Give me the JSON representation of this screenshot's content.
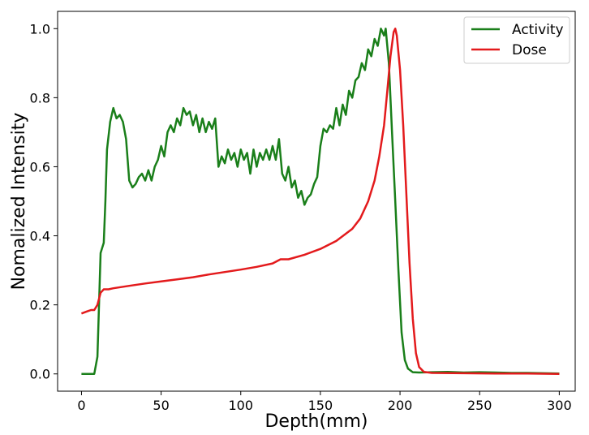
{
  "chart_data": {
    "type": "line",
    "xlabel": "Depth(mm)",
    "ylabel": "Nomalized Intensity",
    "xlim": [
      -15,
      310
    ],
    "ylim": [
      -0.05,
      1.05
    ],
    "xticks": [
      0,
      50,
      100,
      150,
      200,
      250,
      300
    ],
    "yticks": [
      0.0,
      0.2,
      0.4,
      0.6,
      0.8,
      1.0
    ],
    "grid": false,
    "legend_position": "top-right",
    "series": [
      {
        "name": "Activity",
        "color": "#1a7f1a",
        "points": [
          [
            0,
            0.0
          ],
          [
            8,
            0.0
          ],
          [
            10,
            0.05
          ],
          [
            12,
            0.35
          ],
          [
            14,
            0.38
          ],
          [
            15,
            0.5
          ],
          [
            16,
            0.65
          ],
          [
            18,
            0.73
          ],
          [
            20,
            0.77
          ],
          [
            22,
            0.74
          ],
          [
            24,
            0.75
          ],
          [
            26,
            0.73
          ],
          [
            28,
            0.68
          ],
          [
            30,
            0.56
          ],
          [
            32,
            0.54
          ],
          [
            34,
            0.55
          ],
          [
            36,
            0.57
          ],
          [
            38,
            0.58
          ],
          [
            40,
            0.56
          ],
          [
            42,
            0.59
          ],
          [
            44,
            0.56
          ],
          [
            46,
            0.6
          ],
          [
            48,
            0.62
          ],
          [
            50,
            0.66
          ],
          [
            52,
            0.63
          ],
          [
            54,
            0.7
          ],
          [
            56,
            0.72
          ],
          [
            58,
            0.7
          ],
          [
            60,
            0.74
          ],
          [
            62,
            0.72
          ],
          [
            64,
            0.77
          ],
          [
            66,
            0.75
          ],
          [
            68,
            0.76
          ],
          [
            70,
            0.72
          ],
          [
            72,
            0.75
          ],
          [
            74,
            0.7
          ],
          [
            76,
            0.74
          ],
          [
            78,
            0.7
          ],
          [
            80,
            0.73
          ],
          [
            82,
            0.71
          ],
          [
            84,
            0.74
          ],
          [
            86,
            0.6
          ],
          [
            88,
            0.63
          ],
          [
            90,
            0.61
          ],
          [
            92,
            0.65
          ],
          [
            94,
            0.62
          ],
          [
            96,
            0.64
          ],
          [
            98,
            0.6
          ],
          [
            100,
            0.65
          ],
          [
            102,
            0.62
          ],
          [
            104,
            0.64
          ],
          [
            106,
            0.58
          ],
          [
            108,
            0.65
          ],
          [
            110,
            0.6
          ],
          [
            112,
            0.64
          ],
          [
            114,
            0.62
          ],
          [
            116,
            0.65
          ],
          [
            118,
            0.62
          ],
          [
            120,
            0.66
          ],
          [
            122,
            0.62
          ],
          [
            124,
            0.68
          ],
          [
            126,
            0.58
          ],
          [
            128,
            0.56
          ],
          [
            130,
            0.6
          ],
          [
            132,
            0.54
          ],
          [
            134,
            0.56
          ],
          [
            136,
            0.51
          ],
          [
            138,
            0.53
          ],
          [
            140,
            0.49
          ],
          [
            142,
            0.51
          ],
          [
            144,
            0.52
          ],
          [
            146,
            0.55
          ],
          [
            148,
            0.57
          ],
          [
            150,
            0.66
          ],
          [
            152,
            0.71
          ],
          [
            154,
            0.7
          ],
          [
            156,
            0.72
          ],
          [
            158,
            0.71
          ],
          [
            160,
            0.77
          ],
          [
            162,
            0.72
          ],
          [
            164,
            0.78
          ],
          [
            166,
            0.75
          ],
          [
            168,
            0.82
          ],
          [
            170,
            0.8
          ],
          [
            172,
            0.85
          ],
          [
            174,
            0.86
          ],
          [
            176,
            0.9
          ],
          [
            178,
            0.88
          ],
          [
            180,
            0.94
          ],
          [
            182,
            0.92
          ],
          [
            184,
            0.97
          ],
          [
            186,
            0.95
          ],
          [
            188,
            1.0
          ],
          [
            190,
            0.98
          ],
          [
            191,
            1.0
          ],
          [
            193,
            0.9
          ],
          [
            195,
            0.7
          ],
          [
            197,
            0.5
          ],
          [
            199,
            0.3
          ],
          [
            201,
            0.12
          ],
          [
            203,
            0.04
          ],
          [
            205,
            0.015
          ],
          [
            208,
            0.005
          ],
          [
            212,
            0.004
          ],
          [
            220,
            0.005
          ],
          [
            230,
            0.006
          ],
          [
            240,
            0.004
          ],
          [
            250,
            0.005
          ],
          [
            260,
            0.004
          ],
          [
            270,
            0.003
          ],
          [
            280,
            0.003
          ],
          [
            290,
            0.002
          ],
          [
            300,
            0.001
          ]
        ]
      },
      {
        "name": "Dose",
        "color": "#e31a1c",
        "points": [
          [
            0,
            0.175
          ],
          [
            3,
            0.18
          ],
          [
            6,
            0.185
          ],
          [
            8,
            0.185
          ],
          [
            10,
            0.2
          ],
          [
            12,
            0.235
          ],
          [
            14,
            0.245
          ],
          [
            17,
            0.245
          ],
          [
            20,
            0.248
          ],
          [
            30,
            0.255
          ],
          [
            40,
            0.262
          ],
          [
            50,
            0.268
          ],
          [
            60,
            0.274
          ],
          [
            70,
            0.28
          ],
          [
            80,
            0.288
          ],
          [
            90,
            0.295
          ],
          [
            100,
            0.302
          ],
          [
            110,
            0.31
          ],
          [
            120,
            0.32
          ],
          [
            125,
            0.332
          ],
          [
            130,
            0.332
          ],
          [
            140,
            0.345
          ],
          [
            150,
            0.362
          ],
          [
            160,
            0.385
          ],
          [
            170,
            0.42
          ],
          [
            175,
            0.45
          ],
          [
            180,
            0.5
          ],
          [
            184,
            0.56
          ],
          [
            187,
            0.63
          ],
          [
            190,
            0.72
          ],
          [
            192,
            0.82
          ],
          [
            194,
            0.92
          ],
          [
            196,
            0.99
          ],
          [
            197,
            1.0
          ],
          [
            198,
            0.98
          ],
          [
            200,
            0.88
          ],
          [
            202,
            0.72
          ],
          [
            204,
            0.52
          ],
          [
            206,
            0.32
          ],
          [
            208,
            0.16
          ],
          [
            210,
            0.06
          ],
          [
            212,
            0.02
          ],
          [
            215,
            0.006
          ],
          [
            220,
            0.003
          ],
          [
            240,
            0.002
          ],
          [
            260,
            0.001
          ],
          [
            280,
            0.001
          ],
          [
            300,
            0.0
          ]
        ]
      }
    ]
  }
}
